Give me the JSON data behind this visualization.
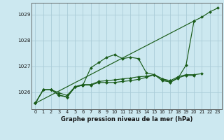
{
  "xlabel": "Graphe pression niveau de la mer (hPa)",
  "bg_color": "#cce8f0",
  "grid_color": "#aaccd8",
  "line_color": "#1a5c1a",
  "marker_color": "#1a5c1a",
  "ylim": [
    1025.35,
    1029.45
  ],
  "xlim": [
    -0.5,
    23.5
  ],
  "yticks": [
    1026,
    1027,
    1028,
    1029
  ],
  "xticks": [
    0,
    1,
    2,
    3,
    4,
    5,
    6,
    7,
    8,
    9,
    10,
    11,
    12,
    13,
    14,
    15,
    16,
    17,
    18,
    19,
    20,
    21,
    22,
    23
  ],
  "series": [
    [
      1025.58,
      null,
      null,
      null,
      null,
      null,
      null,
      null,
      null,
      null,
      null,
      null,
      null,
      null,
      null,
      null,
      null,
      null,
      null,
      null,
      1028.75,
      1028.9,
      1029.1,
      1029.25
    ],
    [
      1025.58,
      1026.1,
      1026.1,
      1025.9,
      1025.82,
      1026.2,
      1026.28,
      1026.95,
      1027.15,
      1027.35,
      1027.45,
      1027.3,
      1027.35,
      1027.3,
      1026.75,
      1026.68,
      1026.52,
      1026.38,
      1026.55,
      1027.05,
      1028.75,
      null,
      null,
      null
    ],
    [
      1025.58,
      1026.1,
      1026.1,
      1025.88,
      1025.82,
      1026.2,
      1026.28,
      1026.28,
      1026.38,
      1026.38,
      1026.38,
      1026.42,
      1026.45,
      1026.5,
      1026.58,
      1026.68,
      1026.45,
      1026.4,
      1026.56,
      1026.65,
      1026.65,
      null,
      null,
      null
    ],
    [
      1025.58,
      1026.1,
      1026.1,
      1025.98,
      1025.88,
      1026.22,
      1026.3,
      1026.3,
      1026.42,
      1026.45,
      1026.48,
      1026.52,
      1026.55,
      1026.6,
      1026.62,
      1026.68,
      1026.52,
      1026.45,
      1026.6,
      1026.68,
      1026.68,
      1026.72,
      null,
      null
    ]
  ]
}
